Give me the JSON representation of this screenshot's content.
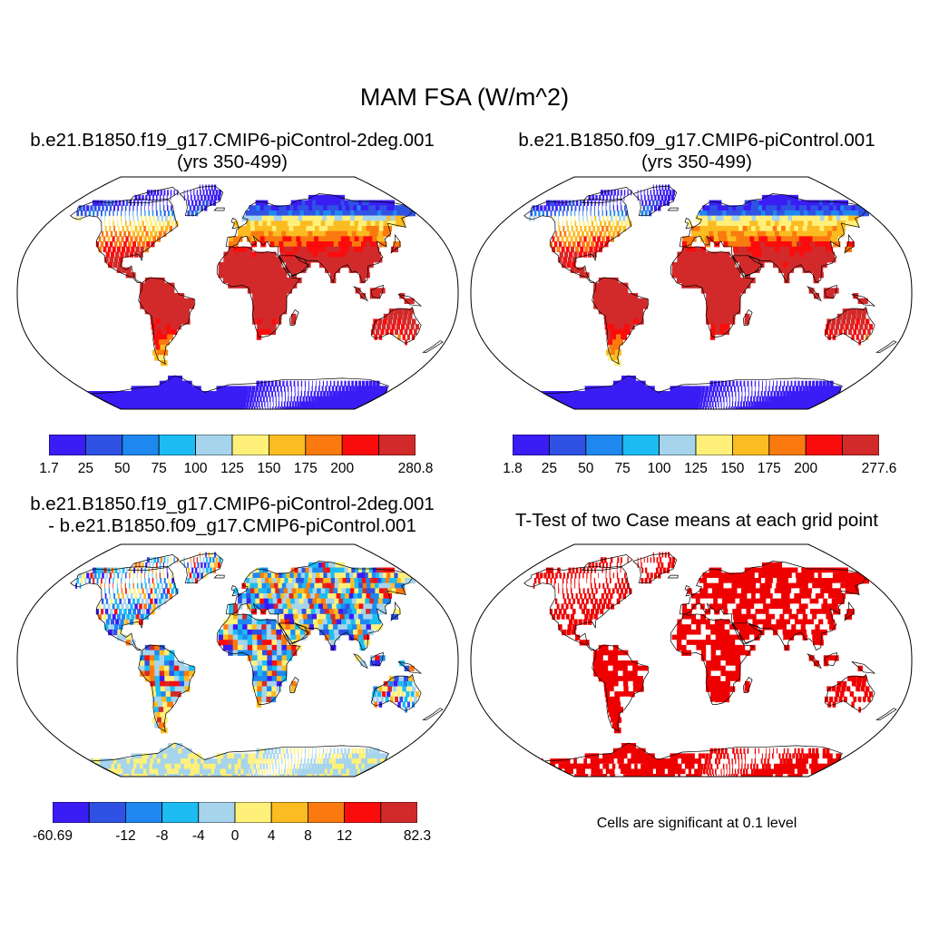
{
  "title": "MAM FSA (W/m^2)",
  "panels": [
    {
      "title_line1": "b.e21.B1850.f19_g17.CMIP6-piControl-2deg.001",
      "title_line2": "(yrs 350-499)"
    },
    {
      "title_line1": "b.e21.B1850.f09_g17.CMIP6-piControl.001",
      "title_line2": "(yrs 350-499)"
    },
    {
      "title_line1": "b.e21.B1850.f19_g17.CMIP6-piControl-2deg.001",
      "title_line2": "- b.e21.B1850.f09_g17.CMIP6-piControl.001"
    },
    {
      "title_line1": "T-Test of two Case means at each grid point",
      "title_line2": ""
    }
  ],
  "colorbars": [
    {
      "colors": [
        "#3a1cf5",
        "#2f52e4",
        "#1e88f0",
        "#1cbcf2",
        "#a6d4ec",
        "#fff07a",
        "#fbbc21",
        "#fb7a0f",
        "#fb0c0c",
        "#d22a2a"
      ],
      "ticks": [
        "1.7",
        "25",
        "50",
        "75",
        "100",
        "125",
        "150",
        "175",
        "200",
        "",
        "280.8"
      ]
    },
    {
      "colors": [
        "#3a1cf5",
        "#2f52e4",
        "#1e88f0",
        "#1cbcf2",
        "#a6d4ec",
        "#fff07a",
        "#fbbc21",
        "#fb7a0f",
        "#fb0c0c",
        "#d22a2a"
      ],
      "ticks": [
        "1.8",
        "25",
        "50",
        "75",
        "100",
        "125",
        "150",
        "175",
        "200",
        "",
        "277.6"
      ]
    },
    {
      "colors": [
        "#3a1cf5",
        "#2f52e4",
        "#1e88f0",
        "#1cbcf2",
        "#a6d4ec",
        "#fff07a",
        "#fbbc21",
        "#fb7a0f",
        "#fb0c0c",
        "#d22a2a"
      ],
      "ticks": [
        "-60.69",
        "",
        "-12",
        "-8",
        "-4",
        "0",
        "4",
        "8",
        "12",
        "",
        "82.3"
      ]
    }
  ],
  "significance_note": "Cells are significant at 0.1 level",
  "significance_color": "#ee0000"
}
